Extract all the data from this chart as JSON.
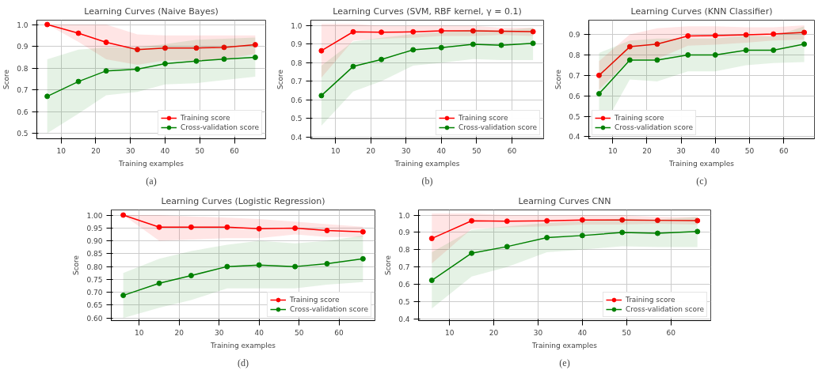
{
  "chart_data": [
    {
      "type": "line",
      "title": "Learning Curves (Naive Bayes)",
      "xlabel": "Training examples",
      "ylabel": "Score",
      "annotations": [
        "(a)"
      ],
      "x": [
        6,
        15,
        23,
        32,
        40,
        49,
        57,
        66
      ],
      "xlim": [
        3,
        69
      ],
      "xticks": [
        10,
        20,
        30,
        40,
        50,
        60
      ],
      "ylim": [
        0.475,
        1.02
      ],
      "yticks": [
        0.5,
        0.6,
        0.7,
        0.8,
        0.9,
        {
          "value": 1,
          "label": "1.0"
        }
      ],
      "grid": true,
      "legend": "bottom right",
      "marker": "circle",
      "line_style": "solid",
      "series": [
        {
          "name": "Training score",
          "color": "#ff0000",
          "values": [
            1.0,
            0.96,
            0.918,
            0.885,
            0.892,
            0.892,
            0.895,
            0.907
          ],
          "lower": [
            1.0,
            0.92,
            0.84,
            0.815,
            0.835,
            0.835,
            0.84,
            0.865
          ],
          "upper": [
            1.0,
            1.0,
            1.0,
            0.955,
            0.95,
            0.95,
            0.95,
            0.95
          ]
        },
        {
          "name": "Cross-validation score",
          "color": "#008000",
          "values": [
            0.67,
            0.738,
            0.787,
            0.795,
            0.82,
            0.832,
            0.841,
            0.849
          ],
          "lower": [
            0.5,
            0.59,
            0.675,
            0.69,
            0.725,
            0.73,
            0.745,
            0.76
          ],
          "upper": [
            0.84,
            0.885,
            0.895,
            0.895,
            0.91,
            0.93,
            0.935,
            0.94
          ]
        }
      ]
    },
    {
      "type": "line",
      "title": "Learning Curves (SVM, RBF kernel, γ = 0.1)",
      "xlabel": "Training examples",
      "ylabel": "Score",
      "annotations": [
        "(b)"
      ],
      "x": [
        6,
        15,
        23,
        32,
        40,
        49,
        57,
        66
      ],
      "xlim": [
        3,
        69
      ],
      "xticks": [
        10,
        20,
        30,
        40,
        50,
        60
      ],
      "ylim": [
        0.39,
        1.03
      ],
      "yticks": [
        0.4,
        0.5,
        0.6,
        0.7,
        0.8,
        0.9,
        {
          "value": 1,
          "label": "1.0"
        }
      ],
      "grid": true,
      "legend": "bottom right",
      "marker": "circle",
      "line_style": "solid",
      "series": [
        {
          "name": "Training score",
          "color": "#ff0000",
          "values": [
            0.865,
            0.967,
            0.965,
            0.967,
            0.972,
            0.972,
            0.97,
            0.968
          ],
          "lower": [
            0.72,
            0.92,
            0.93,
            0.935,
            0.945,
            0.945,
            0.95,
            0.945
          ],
          "upper": [
            1.01,
            1.01,
            1.0,
            1.0,
            1.0,
            1.0,
            0.99,
            0.99
          ]
        },
        {
          "name": "Cross-validation score",
          "color": "#008000",
          "values": [
            0.623,
            0.78,
            0.818,
            0.87,
            0.882,
            0.9,
            0.895,
            0.905
          ],
          "lower": [
            0.46,
            0.645,
            0.7,
            0.785,
            0.8,
            0.82,
            0.815,
            0.815
          ],
          "upper": [
            0.785,
            0.915,
            0.935,
            0.955,
            0.965,
            0.98,
            0.975,
            0.99
          ]
        }
      ]
    },
    {
      "type": "line",
      "title": "Learning Curves (KNN Classifier)",
      "xlabel": "Training examples",
      "ylabel": "Score",
      "annotations": [
        "(c)"
      ],
      "x": [
        6,
        15,
        23,
        32,
        40,
        49,
        57,
        66
      ],
      "xlim": [
        3,
        69
      ],
      "xticks": [
        10,
        20,
        30,
        40,
        50,
        60
      ],
      "ylim": [
        0.39,
        0.97
      ],
      "yticks": [
        0.4,
        0.5,
        0.6,
        0.7,
        0.8,
        0.9
      ],
      "grid": true,
      "legend": "bottom left",
      "marker": "circle",
      "line_style": "solid",
      "series": [
        {
          "name": "Training score",
          "color": "#ff0000",
          "values": [
            0.7,
            0.84,
            0.853,
            0.893,
            0.895,
            0.898,
            0.902,
            0.91
          ],
          "lower": [
            0.63,
            0.78,
            0.78,
            0.845,
            0.85,
            0.86,
            0.87,
            0.875
          ],
          "upper": [
            0.77,
            0.9,
            0.93,
            0.94,
            0.94,
            0.935,
            0.935,
            0.945
          ]
        },
        {
          "name": "Cross-validation score",
          "color": "#008000",
          "values": [
            0.61,
            0.775,
            0.775,
            0.8,
            0.8,
            0.823,
            0.823,
            0.853
          ],
          "lower": [
            0.41,
            0.68,
            0.67,
            0.72,
            0.72,
            0.75,
            0.76,
            0.765
          ],
          "upper": [
            0.81,
            0.87,
            0.88,
            0.88,
            0.88,
            0.895,
            0.89,
            0.94
          ]
        }
      ]
    },
    {
      "type": "line",
      "title": "Learning Curves (Logistic Regression)",
      "xlabel": "Training examples",
      "ylabel": "Score",
      "annotations": [
        "(d)"
      ],
      "x": [
        6,
        15,
        23,
        32,
        40,
        49,
        57,
        66
      ],
      "xlim": [
        3,
        69
      ],
      "xticks": [
        10,
        20,
        30,
        40,
        50,
        60
      ],
      "ylim": [
        0.59,
        1.02
      ],
      "yticks": [
        {
          "value": 0.6,
          "label": "0.60"
        },
        {
          "value": 0.65,
          "label": "0.65"
        },
        {
          "value": 0.7,
          "label": "0.70"
        },
        {
          "value": 0.75,
          "label": "0.75"
        },
        {
          "value": 0.8,
          "label": "0.80"
        },
        {
          "value": 0.85,
          "label": "0.85"
        },
        {
          "value": 0.9,
          "label": "0.90"
        },
        {
          "value": 0.95,
          "label": "0.95"
        },
        {
          "value": 1.0,
          "label": "1.00"
        }
      ],
      "grid": true,
      "legend": "bottom right",
      "marker": "circle",
      "line_style": "solid",
      "series": [
        {
          "name": "Training score",
          "color": "#ff0000",
          "values": [
            1.0,
            0.953,
            0.953,
            0.953,
            0.947,
            0.949,
            0.94,
            0.935
          ],
          "lower": [
            1.0,
            0.9,
            0.905,
            0.91,
            0.91,
            0.925,
            0.915,
            0.915
          ],
          "upper": [
            1.0,
            1.0,
            0.995,
            0.99,
            0.985,
            0.975,
            0.965,
            0.955
          ]
        },
        {
          "name": "Cross-validation score",
          "color": "#008000",
          "values": [
            0.688,
            0.735,
            0.765,
            0.8,
            0.806,
            0.8,
            0.811,
            0.83
          ],
          "lower": [
            0.6,
            0.64,
            0.67,
            0.715,
            0.715,
            0.715,
            0.73,
            0.74
          ],
          "upper": [
            0.775,
            0.83,
            0.86,
            0.885,
            0.9,
            0.89,
            0.9,
            0.92
          ]
        }
      ]
    },
    {
      "type": "line",
      "title": "Learning Curves CNN",
      "xlabel": "Training examples",
      "ylabel": "Score",
      "annotations": [
        "(e)"
      ],
      "x": [
        6,
        15,
        23,
        32,
        40,
        49,
        57,
        66
      ],
      "xlim": [
        3,
        69
      ],
      "xticks": [
        10,
        20,
        30,
        40,
        50,
        60
      ],
      "ylim": [
        0.39,
        1.03
      ],
      "yticks": [
        0.4,
        0.5,
        0.6,
        0.7,
        0.8,
        0.9,
        {
          "value": 1,
          "label": "1.0"
        }
      ],
      "grid": true,
      "legend": "bottom right",
      "marker": "circle",
      "line_style": "solid",
      "series": [
        {
          "name": "Training score",
          "color": "#ff0000",
          "values": [
            0.865,
            0.967,
            0.965,
            0.967,
            0.972,
            0.972,
            0.97,
            0.968
          ],
          "lower": [
            0.72,
            0.92,
            0.93,
            0.935,
            0.945,
            0.945,
            0.95,
            0.945
          ],
          "upper": [
            1.01,
            1.01,
            1.0,
            1.0,
            1.0,
            1.0,
            0.99,
            0.99
          ]
        },
        {
          "name": "Cross-validation score",
          "color": "#008000",
          "values": [
            0.623,
            0.78,
            0.818,
            0.87,
            0.882,
            0.9,
            0.895,
            0.905
          ],
          "lower": [
            0.46,
            0.645,
            0.7,
            0.785,
            0.8,
            0.82,
            0.815,
            0.815
          ],
          "upper": [
            0.785,
            0.915,
            0.935,
            0.955,
            0.965,
            0.98,
            0.975,
            0.99
          ]
        }
      ]
    }
  ]
}
